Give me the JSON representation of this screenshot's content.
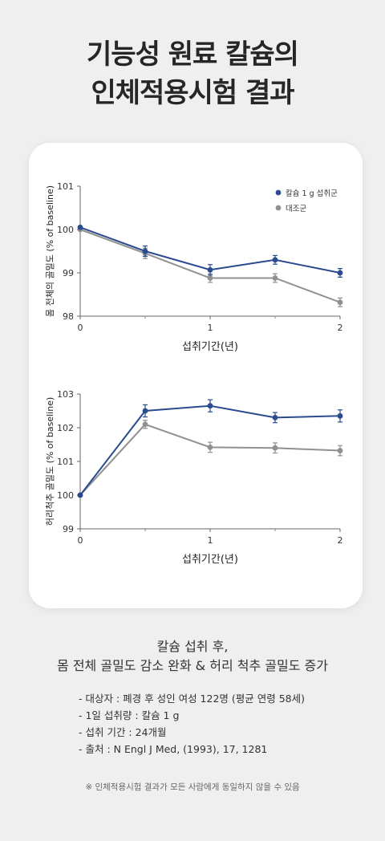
{
  "title": {
    "line1": "기능성 원료 칼슘의",
    "line2": "인체적용시험 결과"
  },
  "chart_data": [
    {
      "type": "line",
      "ylabel": "몸 전체의 골밀도 (% of baseline)",
      "xlabel": "섭취기간(년)",
      "xlim": [
        0,
        2
      ],
      "ylim": [
        98,
        101
      ],
      "xticks": [
        "0",
        "1",
        "2"
      ],
      "yticks": [
        "98",
        "99",
        "100",
        "101"
      ],
      "legend": "top-right",
      "series": [
        {
          "name": "칼슘 1 g 섭취군",
          "color": "#2b4a8f",
          "x": [
            0,
            0.5,
            1,
            1.5,
            2
          ],
          "y": [
            100.05,
            99.5,
            99.07,
            99.3,
            99.0
          ],
          "err": [
            0,
            0.12,
            0.12,
            0.1,
            0.1
          ]
        },
        {
          "name": "대조군",
          "color": "#909090",
          "x": [
            0,
            0.5,
            1,
            1.5,
            2
          ],
          "y": [
            100.0,
            99.45,
            98.88,
            98.88,
            98.32
          ],
          "err": [
            0,
            0.12,
            0.1,
            0.1,
            0.1
          ]
        }
      ]
    },
    {
      "type": "line",
      "ylabel": "허리척추 골밀도 (% of baseline)",
      "xlabel": "섭취기간(년)",
      "xlim": [
        0,
        2
      ],
      "ylim": [
        99,
        103
      ],
      "xticks": [
        "0",
        "1",
        "2"
      ],
      "yticks": [
        "99",
        "100",
        "101",
        "102",
        "103"
      ],
      "series": [
        {
          "name": "칼슘 1 g 섭취군",
          "color": "#2b4a8f",
          "x": [
            0,
            0.5,
            1,
            1.5,
            2
          ],
          "y": [
            100.0,
            102.5,
            102.65,
            102.3,
            102.35
          ],
          "err": [
            0,
            0.18,
            0.18,
            0.15,
            0.18
          ]
        },
        {
          "name": "대조군",
          "color": "#909090",
          "x": [
            0,
            0.5,
            1,
            1.5,
            2
          ],
          "y": [
            100.0,
            102.1,
            101.42,
            101.4,
            101.32
          ],
          "err": [
            0,
            0.12,
            0.15,
            0.15,
            0.15
          ]
        }
      ]
    }
  ],
  "summary": {
    "line1": "칼슘 섭취 후,",
    "line2": "몸 전체 골밀도 감소 완화 & 허리 척추 골밀도 증가"
  },
  "details": [
    "-  대상자 : 폐경 후 성인 여성 122명 (평균 연령 58세)",
    "-  1일 섭취량 : 칼슘 1 g",
    "-  섭취 기간 : 24개월",
    "-  출처 : N Engl J Med, (1993), 17, 1281"
  ],
  "note": "※ 인체적용시험 결과가 모든 사람에게 동일하지 않을 수 있음"
}
